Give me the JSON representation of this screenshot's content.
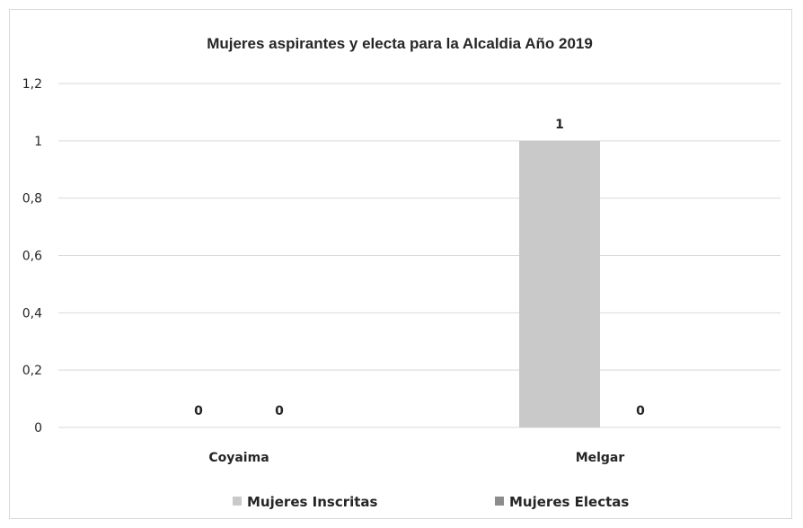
{
  "chart_data": {
    "type": "bar",
    "title": "Mujeres aspirantes y electa para la Alcaldia Año 2019",
    "xlabel": "",
    "ylabel": "",
    "categories": [
      "Coyaima",
      "Melgar"
    ],
    "series": [
      {
        "name": "Mujeres Inscritas",
        "values": [
          0,
          1
        ],
        "color": "#c9c9c9"
      },
      {
        "name": "Mujeres Electas",
        "values": [
          0,
          0
        ],
        "color": "#8c8c8c"
      }
    ],
    "ylim": [
      0,
      1.2
    ],
    "yticks": [
      "0",
      "0,2",
      "0,4",
      "0,6",
      "0,8",
      "1",
      "1,2"
    ],
    "data_labels": [
      [
        "0",
        "0"
      ],
      [
        "1",
        "0"
      ]
    ],
    "grid": true,
    "legend": "bottom"
  }
}
